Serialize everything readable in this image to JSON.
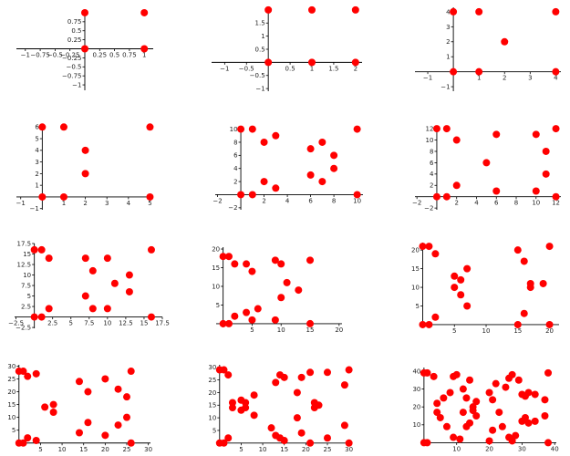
{
  "figure": {
    "layout": {
      "rows": 4,
      "cols": 3
    },
    "marker_color": "#ff0000",
    "axis_color": "#000000"
  },
  "chart_data": [
    {
      "type": "scatter",
      "points": [
        [
          0,
          1
        ],
        [
          0,
          0
        ],
        [
          1,
          1
        ],
        [
          1,
          0
        ]
      ],
      "xlim": [
        -1.15,
        1.15
      ],
      "ylim": [
        -1.15,
        1.1
      ],
      "xticks": [
        -1,
        -0.75,
        -0.5,
        -0.25,
        0.25,
        0.5,
        0.75,
        1
      ],
      "xtick_labels": [
        "−1",
        "−0.75",
        "−0.5",
        "−0.25",
        "0.25",
        "0.5",
        "0.75",
        "1"
      ],
      "yticks": [
        -1,
        -0.75,
        -0.5,
        -0.25,
        0.25,
        0.5,
        0.75
      ],
      "ytick_labels": [
        "−1",
        "−0.75",
        "−0.5",
        "−0.25",
        "0.25",
        "0.5",
        "0.75"
      ],
      "grid": false,
      "legend": "none"
    },
    {
      "type": "scatter",
      "points": [
        [
          0,
          2
        ],
        [
          0,
          0
        ],
        [
          1,
          2
        ],
        [
          1,
          0
        ],
        [
          2,
          2
        ],
        [
          2,
          0
        ]
      ],
      "xlim": [
        -1.3,
        2.15
      ],
      "ylim": [
        -1.1,
        2.1
      ],
      "xticks": [
        -1,
        -0.5,
        0.5,
        1,
        1.5,
        2
      ],
      "xtick_labels": [
        "−1",
        "−0.5",
        "0.5",
        "1",
        "1.5",
        "2"
      ],
      "yticks": [
        -1,
        -0.5,
        0.5,
        1,
        1.5
      ],
      "ytick_labels": [
        "−1",
        "−0.5",
        "0.5",
        "1",
        "1.5"
      ],
      "grid": false,
      "legend": "none"
    },
    {
      "type": "scatter",
      "points": [
        [
          0,
          4
        ],
        [
          0,
          0
        ],
        [
          1,
          4
        ],
        [
          1,
          0
        ],
        [
          2,
          2
        ],
        [
          4,
          4
        ],
        [
          4,
          0
        ]
      ],
      "xlim": [
        -1.5,
        4.2
      ],
      "ylim": [
        -1.3,
        4.3
      ],
      "xticks": [
        -1,
        1,
        2,
        3,
        4
      ],
      "xtick_labels": [
        "−1",
        "1",
        "2",
        "3",
        "4"
      ],
      "yticks": [
        -1,
        1,
        2,
        3,
        4
      ],
      "ytick_labels": [
        "−1",
        "1",
        "2",
        "3",
        "4"
      ],
      "grid": false,
      "legend": "none"
    },
    {
      "type": "scatter",
      "points": [
        [
          0,
          6
        ],
        [
          0,
          0
        ],
        [
          1,
          6
        ],
        [
          1,
          0
        ],
        [
          2,
          4
        ],
        [
          2,
          2
        ],
        [
          5,
          6
        ],
        [
          5,
          0
        ]
      ],
      "xlim": [
        -1.2,
        5.15
      ],
      "ylim": [
        -1.1,
        6.1
      ],
      "xticks": [
        -1,
        1,
        2,
        3,
        4,
        5
      ],
      "xtick_labels": [
        "−1",
        "1",
        "2",
        "3",
        "4",
        "5"
      ],
      "yticks": [
        -1,
        1,
        2,
        3,
        4,
        5,
        6
      ],
      "ytick_labels": [
        "−1",
        "1",
        "2",
        "3",
        "4",
        "5",
        "6"
      ],
      "grid": false,
      "legend": "none"
    },
    {
      "type": "scatter",
      "points": [
        [
          0,
          10
        ],
        [
          0,
          0
        ],
        [
          1,
          10
        ],
        [
          1,
          0
        ],
        [
          2,
          8
        ],
        [
          2,
          2
        ],
        [
          3,
          9
        ],
        [
          3,
          1
        ],
        [
          6,
          7
        ],
        [
          6,
          3
        ],
        [
          7,
          8
        ],
        [
          7,
          2
        ],
        [
          8,
          6
        ],
        [
          8,
          4
        ],
        [
          10,
          10
        ],
        [
          10,
          0
        ]
      ],
      "xlim": [
        -2.2,
        10.5
      ],
      "ylim": [
        -2.3,
        10.5
      ],
      "xticks": [
        -2,
        2,
        4,
        6,
        8,
        10
      ],
      "xtick_labels": [
        "−2",
        "2",
        "4",
        "6",
        "8",
        "10"
      ],
      "yticks": [
        -2,
        2,
        4,
        6,
        8,
        10
      ],
      "ytick_labels": [
        "−2",
        "2",
        "4",
        "6",
        "8",
        "10"
      ],
      "grid": false,
      "legend": "none"
    },
    {
      "type": "scatter",
      "points": [
        [
          0,
          12
        ],
        [
          0,
          0
        ],
        [
          1,
          12
        ],
        [
          1,
          0
        ],
        [
          2,
          10
        ],
        [
          2,
          2
        ],
        [
          5,
          6
        ],
        [
          6,
          11
        ],
        [
          6,
          1
        ],
        [
          10,
          11
        ],
        [
          10,
          1
        ],
        [
          11,
          8
        ],
        [
          11,
          4
        ],
        [
          12,
          12
        ],
        [
          12,
          0
        ]
      ],
      "xlim": [
        -2.2,
        12.5
      ],
      "ylim": [
        -2.3,
        12.5
      ],
      "xticks": [
        -2,
        2,
        4,
        6,
        8,
        10,
        12
      ],
      "xtick_labels": [
        "−2",
        "2",
        "4",
        "6",
        "8",
        "10",
        "12"
      ],
      "yticks": [
        -2,
        2,
        4,
        6,
        8,
        10,
        12
      ],
      "ytick_labels": [
        "−2",
        "2",
        "4",
        "6",
        "8",
        "10",
        "12"
      ],
      "grid": false,
      "legend": "none"
    },
    {
      "type": "scatter",
      "points": [
        [
          0,
          16
        ],
        [
          0,
          0
        ],
        [
          1,
          16
        ],
        [
          1,
          0
        ],
        [
          2,
          14
        ],
        [
          2,
          2
        ],
        [
          7,
          14
        ],
        [
          7,
          5
        ],
        [
          8,
          11
        ],
        [
          8,
          2
        ],
        [
          10,
          14
        ],
        [
          10,
          2
        ],
        [
          11,
          8
        ],
        [
          13,
          10
        ],
        [
          13,
          6
        ],
        [
          16,
          16
        ],
        [
          16,
          0
        ]
      ],
      "xlim": [
        -2.7,
        17.5
      ],
      "ylim": [
        -2.7,
        17.5
      ],
      "xticks": [
        -2.5,
        2.5,
        5,
        7.5,
        10,
        12.5,
        15,
        17.5
      ],
      "xtick_labels": [
        "−2.5",
        "2.5",
        "5",
        "7.5",
        "10",
        "12.5",
        "15",
        "17.5"
      ],
      "yticks": [
        -2.5,
        2.5,
        5,
        7.5,
        10,
        12.5,
        15,
        17.5
      ],
      "ytick_labels": [
        "−2.5",
        "2.5",
        "5",
        "7.5",
        "10",
        "12.5",
        "15",
        "17.5"
      ],
      "grid": false,
      "legend": "none"
    },
    {
      "type": "scatter",
      "points": [
        [
          0,
          18
        ],
        [
          0,
          0
        ],
        [
          1,
          18
        ],
        [
          1,
          0
        ],
        [
          2,
          16
        ],
        [
          2,
          2
        ],
        [
          4,
          16
        ],
        [
          4,
          3
        ],
        [
          5,
          14
        ],
        [
          5,
          1
        ],
        [
          6,
          4
        ],
        [
          9,
          17
        ],
        [
          9,
          1
        ],
        [
          10,
          16
        ],
        [
          10,
          7
        ],
        [
          11,
          11
        ],
        [
          13,
          9
        ],
        [
          15,
          17
        ],
        [
          15,
          0
        ]
      ],
      "xlim": [
        -1.2,
        20.5
      ],
      "ylim": [
        -1.0,
        20.5
      ],
      "xticks": [
        5,
        10,
        15,
        20
      ],
      "xtick_labels": [
        "5",
        "10",
        "15",
        "20"
      ],
      "yticks": [
        5,
        10,
        15,
        20
      ],
      "ytick_labels": [
        "5",
        "10",
        "15",
        "20"
      ],
      "grid": false,
      "legend": "none"
    },
    {
      "type": "scatter",
      "points": [
        [
          0,
          21
        ],
        [
          0,
          0
        ],
        [
          1,
          21
        ],
        [
          1,
          0
        ],
        [
          2,
          19
        ],
        [
          2,
          2
        ],
        [
          5,
          13
        ],
        [
          5,
          10
        ],
        [
          6,
          12
        ],
        [
          6,
          8
        ],
        [
          7,
          15
        ],
        [
          7,
          5
        ],
        [
          15,
          20
        ],
        [
          15,
          0
        ],
        [
          16,
          17
        ],
        [
          16,
          3
        ],
        [
          17,
          11
        ],
        [
          17,
          10
        ],
        [
          19,
          11
        ],
        [
          20,
          21
        ],
        [
          20,
          0
        ]
      ],
      "xlim": [
        -0.5,
        21.5
      ],
      "ylim": [
        -0.5,
        22
      ],
      "xticks": [
        5,
        10,
        15,
        20
      ],
      "xtick_labels": [
        "5",
        "10",
        "15",
        "20"
      ],
      "yticks": [
        5,
        10,
        15,
        20
      ],
      "ytick_labels": [
        "5",
        "10",
        "15",
        "20"
      ],
      "grid": false,
      "legend": "none"
    },
    {
      "type": "scatter",
      "points": [
        [
          0,
          28
        ],
        [
          0,
          0
        ],
        [
          1,
          28
        ],
        [
          1,
          0
        ],
        [
          2,
          26
        ],
        [
          2,
          2
        ],
        [
          4,
          27
        ],
        [
          4,
          1
        ],
        [
          6,
          14
        ],
        [
          8,
          15
        ],
        [
          8,
          12
        ],
        [
          14,
          24
        ],
        [
          14,
          4
        ],
        [
          16,
          20
        ],
        [
          16,
          8
        ],
        [
          20,
          25
        ],
        [
          20,
          3
        ],
        [
          23,
          21
        ],
        [
          23,
          7
        ],
        [
          25,
          18
        ],
        [
          25,
          10
        ],
        [
          26,
          28
        ],
        [
          26,
          0
        ]
      ],
      "xlim": [
        -0.8,
        30.5
      ],
      "ylim": [
        -0.8,
        30.5
      ],
      "xticks": [
        5,
        10,
        15,
        20,
        25,
        30
      ],
      "xtick_labels": [
        "5",
        "10",
        "15",
        "20",
        "25",
        "30"
      ],
      "yticks": [
        5,
        10,
        15,
        20,
        25,
        30
      ],
      "ytick_labels": [
        "5",
        "10",
        "15",
        "20",
        "25",
        "30"
      ],
      "grid": false,
      "legend": "none"
    },
    {
      "type": "scatter",
      "points": [
        [
          0,
          29
        ],
        [
          0,
          0
        ],
        [
          1,
          29
        ],
        [
          1,
          0
        ],
        [
          2,
          27
        ],
        [
          2,
          2
        ],
        [
          3,
          14
        ],
        [
          3,
          16
        ],
        [
          5,
          17
        ],
        [
          5,
          13
        ],
        [
          6,
          16
        ],
        [
          6,
          14
        ],
        [
          8,
          19
        ],
        [
          8,
          11
        ],
        [
          12,
          6
        ],
        [
          13,
          24
        ],
        [
          13,
          3
        ],
        [
          14,
          27
        ],
        [
          14,
          2
        ],
        [
          15,
          26
        ],
        [
          15,
          1
        ],
        [
          18,
          20
        ],
        [
          18,
          10
        ],
        [
          19,
          26
        ],
        [
          19,
          4
        ],
        [
          21,
          28
        ],
        [
          21,
          0
        ],
        [
          22,
          16
        ],
        [
          22,
          14
        ],
        [
          23,
          15
        ],
        [
          25,
          28
        ],
        [
          25,
          2
        ],
        [
          29,
          23
        ],
        [
          29,
          7
        ],
        [
          30,
          29
        ],
        [
          30,
          0
        ]
      ],
      "xlim": [
        -0.8,
        30.5
      ],
      "ylim": [
        -0.8,
        31
      ],
      "xticks": [
        5,
        10,
        15,
        20,
        25,
        30
      ],
      "xtick_labels": [
        "5",
        "10",
        "15",
        "20",
        "25",
        "30"
      ],
      "yticks": [
        5,
        10,
        15,
        20,
        25,
        30
      ],
      "ytick_labels": [
        "5",
        "10",
        "15",
        "20",
        "25",
        "30"
      ],
      "grid": false,
      "legend": "none"
    },
    {
      "type": "scatter",
      "points": [
        [
          0,
          39
        ],
        [
          0,
          0
        ],
        [
          1,
          39
        ],
        [
          1,
          0
        ],
        [
          3,
          37
        ],
        [
          4,
          22
        ],
        [
          4,
          17
        ],
        [
          5,
          14
        ],
        [
          6,
          25
        ],
        [
          7,
          9
        ],
        [
          8,
          28
        ],
        [
          9,
          37
        ],
        [
          9,
          3
        ],
        [
          10,
          38
        ],
        [
          11,
          2
        ],
        [
          12,
          30
        ],
        [
          12,
          17
        ],
        [
          13,
          25
        ],
        [
          13,
          9
        ],
        [
          14,
          35
        ],
        [
          14,
          11
        ],
        [
          15,
          20
        ],
        [
          15,
          18
        ],
        [
          16,
          23
        ],
        [
          16,
          15
        ],
        [
          20,
          28
        ],
        [
          20,
          1
        ],
        [
          21,
          24
        ],
        [
          21,
          7
        ],
        [
          22,
          33
        ],
        [
          23,
          17
        ],
        [
          24,
          9
        ],
        [
          25,
          31
        ],
        [
          26,
          36
        ],
        [
          26,
          3
        ],
        [
          27,
          38
        ],
        [
          27,
          1
        ],
        [
          28,
          4
        ],
        [
          29,
          35
        ],
        [
          30,
          27
        ],
        [
          30,
          12
        ],
        [
          31,
          26
        ],
        [
          31,
          14
        ],
        [
          32,
          28
        ],
        [
          32,
          11
        ],
        [
          34,
          27
        ],
        [
          34,
          12
        ],
        [
          37,
          24
        ],
        [
          37,
          15
        ],
        [
          38,
          39
        ],
        [
          38,
          0
        ]
      ],
      "xlim": [
        -0.8,
        40.5
      ],
      "ylim": [
        -0.8,
        42
      ],
      "xticks": [
        10,
        20,
        30,
        40
      ],
      "xtick_labels": [
        "10",
        "20",
        "30",
        "40"
      ],
      "yticks": [
        10,
        20,
        30,
        40
      ],
      "ytick_labels": [
        "10",
        "20",
        "30",
        "40"
      ],
      "grid": false,
      "legend": "none"
    }
  ]
}
